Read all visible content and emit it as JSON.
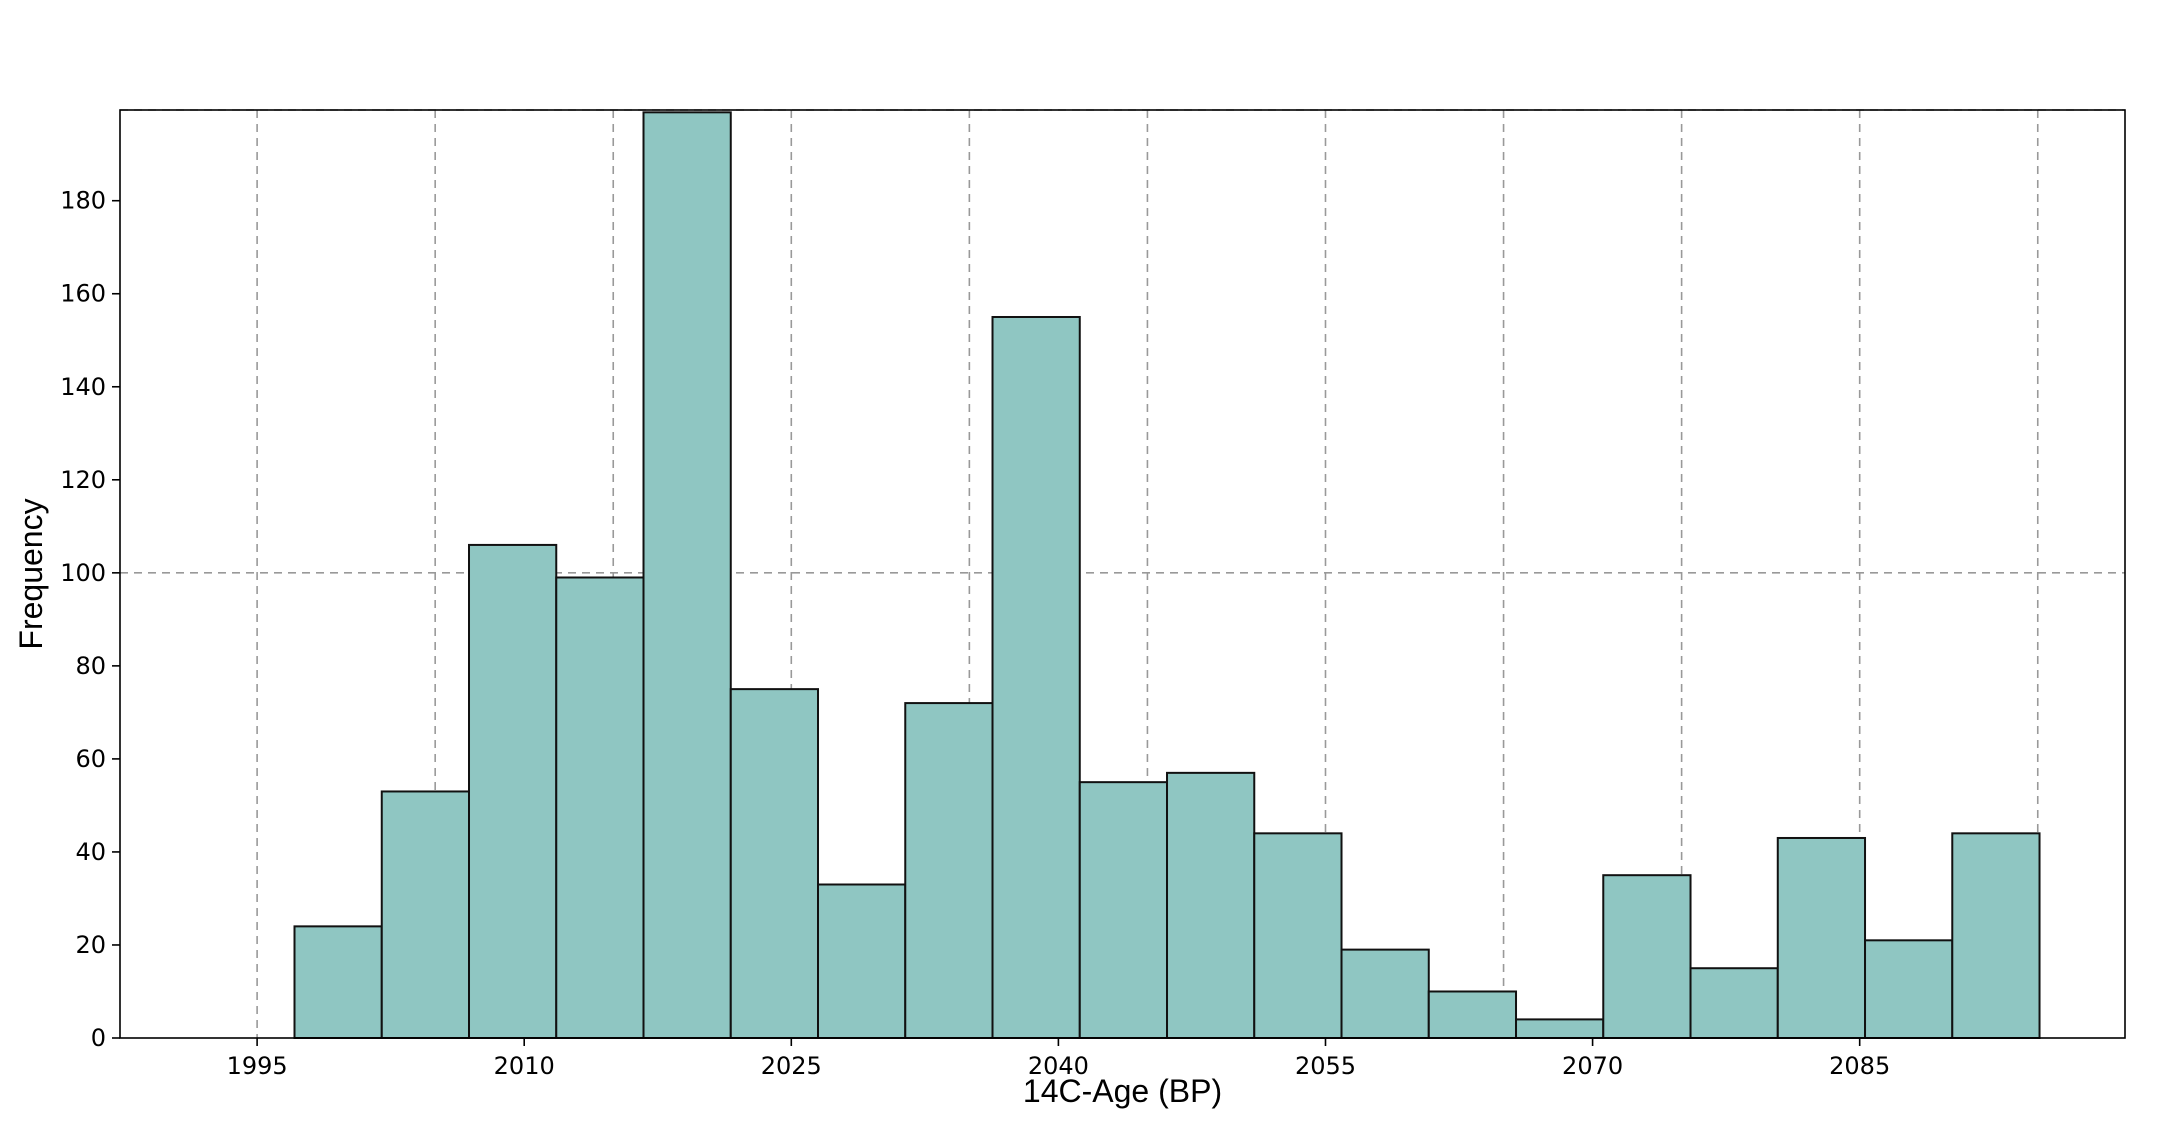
{
  "chart_data": {
    "type": "bar",
    "title": "",
    "xlabel": "14C-Age (BP)",
    "ylabel": "Frequency",
    "bin_width": 4.9,
    "xlim": [
      1987.3,
      2099.9
    ],
    "ylim": [
      0,
      199.5
    ],
    "x_ticks": [
      1995,
      2010,
      2025,
      2040,
      2055,
      2070,
      2085
    ],
    "x_tick_labels": [
      "1995",
      "2010",
      "2025",
      "2040",
      "2055",
      "2070",
      "2085"
    ],
    "y_ticks": [
      0,
      20,
      40,
      60,
      80,
      100,
      120,
      140,
      160,
      180
    ],
    "y_tick_labels": [
      "0",
      "20",
      "40",
      "60",
      "80",
      "100",
      "120",
      "140",
      "160",
      "180"
    ],
    "x_gridlines": [
      1995,
      2005,
      2015,
      2025,
      2035,
      2045,
      2055,
      2065,
      2075,
      2085,
      2095
    ],
    "y_gridlines": [
      100,
      200
    ],
    "grid": true,
    "grid_style": "dashed",
    "bins": [
      {
        "start": 1997.1,
        "value": 24
      },
      {
        "start": 2002.0,
        "value": 53
      },
      {
        "start": 2006.9,
        "value": 106
      },
      {
        "start": 2011.8,
        "value": 99
      },
      {
        "start": 2016.7,
        "value": 199
      },
      {
        "start": 2021.6,
        "value": 75
      },
      {
        "start": 2026.5,
        "value": 33
      },
      {
        "start": 2031.4,
        "value": 72
      },
      {
        "start": 2036.3,
        "value": 155
      },
      {
        "start": 2041.2,
        "value": 55
      },
      {
        "start": 2046.1,
        "value": 57
      },
      {
        "start": 2051.0,
        "value": 44
      },
      {
        "start": 2055.9,
        "value": 19
      },
      {
        "start": 2060.8,
        "value": 10
      },
      {
        "start": 2065.7,
        "value": 4
      },
      {
        "start": 2070.6,
        "value": 35
      },
      {
        "start": 2075.5,
        "value": 15
      },
      {
        "start": 2080.4,
        "value": 43
      },
      {
        "start": 2085.3,
        "value": 21
      },
      {
        "start": 2090.2,
        "value": 44
      }
    ],
    "colors": {
      "bar_fill": "#8fc6c2",
      "bar_edge": "#111111",
      "grid": "#999999",
      "axis": "#000000"
    }
  }
}
